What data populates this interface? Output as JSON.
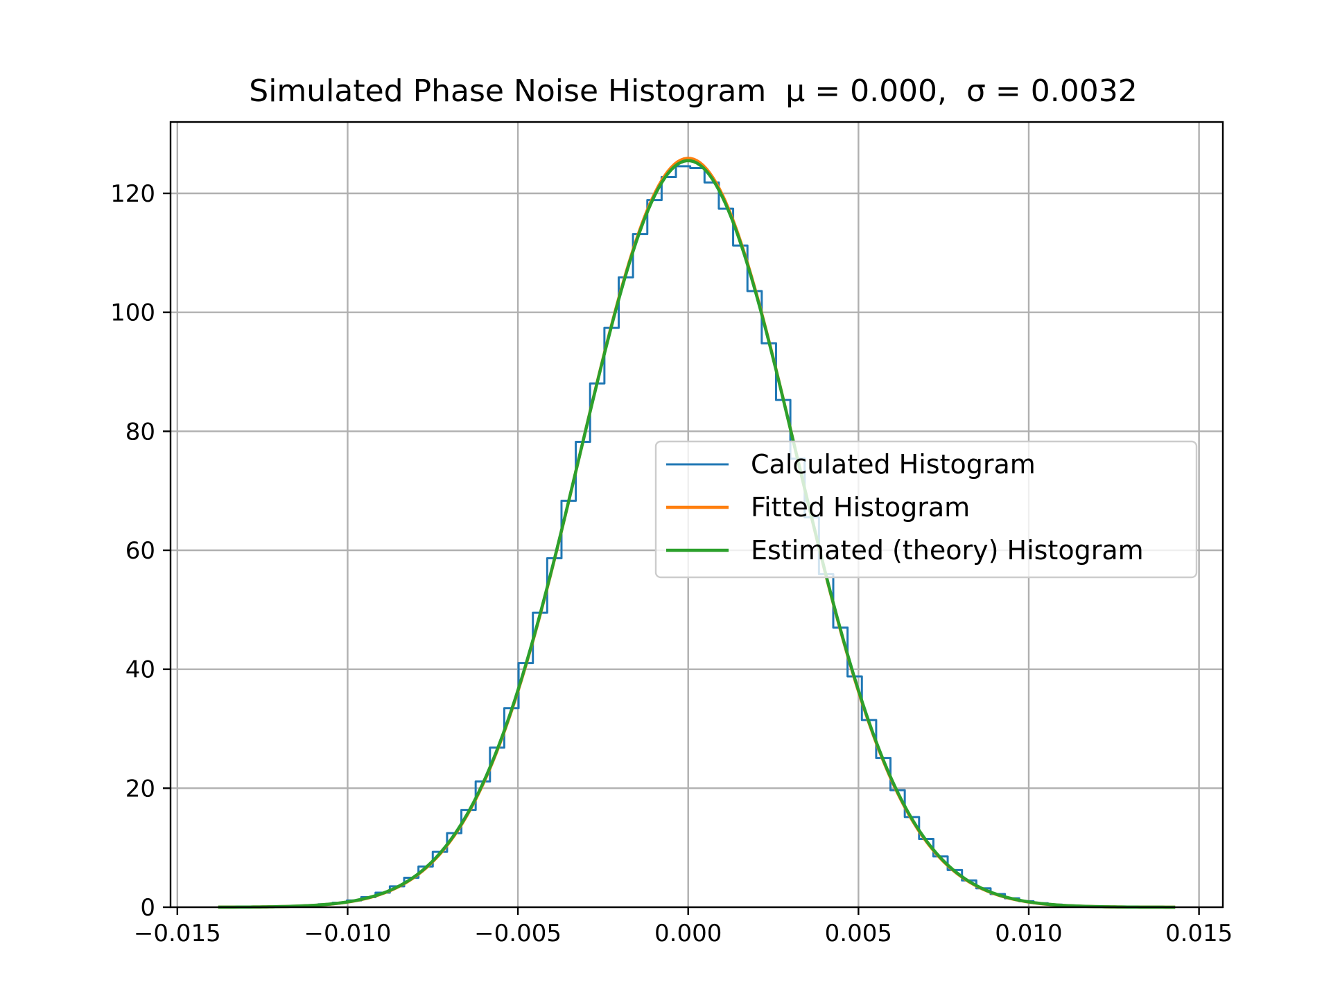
{
  "chart_data": {
    "type": "line",
    "title": "Simulated Phase Noise Histogram",
    "title_math_mu": "μ = 0.000,",
    "title_math_sigma": "σ = 0.0032",
    "xlabel": "",
    "ylabel": "",
    "xlim": [
      -0.0152,
      0.0157
    ],
    "ylim": [
      0,
      132
    ],
    "grid": true,
    "legend_position": "center-right",
    "x_ticks": [
      -0.015,
      -0.01,
      -0.005,
      0.0,
      0.005,
      0.01,
      0.015
    ],
    "x_tick_labels": [
      "−0.015",
      "−0.010",
      "−0.005",
      "0.000",
      "0.005",
      "0.010",
      "0.015"
    ],
    "y_ticks": [
      0,
      20,
      40,
      60,
      80,
      100,
      120
    ],
    "y_tick_labels": [
      "0",
      "20",
      "40",
      "60",
      "80",
      "100",
      "120"
    ],
    "histogram": {
      "mu": 0.0,
      "sigma": 0.0032,
      "peak": 124.7,
      "x_min": -0.0138,
      "x_max": 0.0143,
      "bin_width": 0.00042
    },
    "series": [
      {
        "name": "Calculated Histogram",
        "color": "#1f77b4",
        "style": "steps",
        "mu": 0.0,
        "sigma": 0.0032,
        "peak": 124.7
      },
      {
        "name": "Fitted Histogram",
        "color": "#ff7f0e",
        "style": "line",
        "mu": 0.0,
        "sigma": 0.00317,
        "peak": 125.9
      },
      {
        "name": "Estimated (theory) Histogram",
        "color": "#2ca02c",
        "style": "line",
        "mu": 0.0,
        "sigma": 0.00318,
        "peak": 125.5
      }
    ]
  }
}
